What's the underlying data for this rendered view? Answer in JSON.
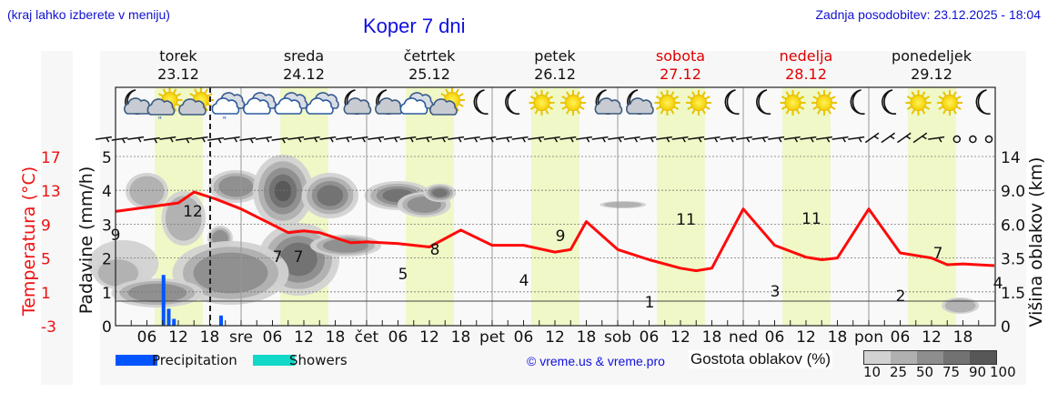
{
  "header": {
    "location_hint": "(kraj lahko izberete v meniju)",
    "title": "Koper 7 dni",
    "last_update": "Zadnja posodobitev: 23.12.2025 - 18:04"
  },
  "days": [
    {
      "name": "torek",
      "date": "23.12",
      "weekend": false
    },
    {
      "name": "sreda",
      "date": "24.12",
      "weekend": false
    },
    {
      "name": "četrtek",
      "date": "25.12",
      "weekend": false
    },
    {
      "name": "petek",
      "date": "26.12",
      "weekend": false
    },
    {
      "name": "sobota",
      "date": "27.12",
      "weekend": true
    },
    {
      "name": "nedelja",
      "date": "28.12",
      "weekend": true
    },
    {
      "name": "ponedeljek",
      "date": "29.12",
      "weekend": false
    }
  ],
  "weather_icons": [
    "moon-cloud-icon",
    "sun-cloud-rain-icon",
    "sun-cloud-icon",
    "cloud-rain-icon",
    "cloud-icon",
    "cloud-icon",
    "cloud-icon",
    "moon-cloud-icon",
    "moon-cloud-icon",
    "cloud-icon",
    "sun-cloud-icon",
    "moon-icon",
    "moon-icon",
    "sun-icon",
    "sun-icon",
    "moon-cloud-icon",
    "moon-cloud-icon",
    "sun-icon",
    "sun-icon",
    "moon-icon",
    "moon-icon",
    "sun-icon",
    "sun-icon",
    "moon-icon",
    "moon-icon",
    "sun-icon",
    "sun-icon",
    "moon-icon"
  ],
  "axes": {
    "temp_label": "Temperatura (°C)",
    "temp_ticks": [
      "17",
      "13",
      "9",
      "5",
      "1",
      "-3"
    ],
    "precip_label": "Padavine (mm/h)",
    "precip_ticks": [
      "5",
      "4",
      "3",
      "2",
      "1",
      "0"
    ],
    "cloud_label": "Višina oblakov (km)",
    "cloud_ticks": [
      "14",
      "9.0",
      "6.0",
      "3.5",
      "1.5",
      "0"
    ],
    "x_ticks": [
      "06",
      "12",
      "18",
      "sre",
      "06",
      "12",
      "18",
      "čet",
      "06",
      "12",
      "18",
      "pet",
      "06",
      "12",
      "18",
      "sob",
      "06",
      "12",
      "18",
      "ned",
      "06",
      "12",
      "18",
      "pon",
      "06",
      "12",
      "18"
    ]
  },
  "legend": {
    "precipitation": "Precipitation",
    "showers": "Showers",
    "precipitation_color": "#0055ff",
    "showers_color": "#11d8c8",
    "copyright": "© vreme.us & vreme.pro",
    "cloud_density_label": "Gostota oblakov (%)",
    "cloud_density_ticks": [
      "10",
      "25",
      "50",
      "75",
      "90",
      "100"
    ],
    "cloud_density_colors": [
      "#d2d2d2",
      "#b0b0b0",
      "#8e8e8e",
      "#727272",
      "#575757"
    ]
  },
  "chart_data": {
    "type": "line",
    "title": "Koper 7 dni",
    "xlabel": "",
    "ylabel": "Temperatura (°C)",
    "ylim": [
      -3,
      17
    ],
    "grid": true,
    "x_unit": "hours from 23.12 00:00",
    "series": [
      {
        "name": "Temperatura (°C)",
        "color": "#ff0000",
        "x": [
          0,
          12,
          15,
          19,
          24,
          33,
          36,
          39,
          45,
          48,
          54,
          60,
          66,
          72,
          78,
          84,
          87,
          90,
          96,
          102,
          108,
          111,
          114,
          120,
          126,
          132,
          135,
          138,
          144,
          150,
          156,
          159,
          162,
          168
        ],
        "values": [
          10.5,
          11.5,
          12.8,
          12,
          10.8,
          8,
          8.2,
          8,
          6.8,
          6.9,
          6.7,
          6.3,
          8.3,
          6.5,
          6.5,
          5.7,
          6,
          9.3,
          6,
          4.8,
          3.8,
          3.5,
          3.8,
          10.8,
          6.5,
          5.1,
          4.8,
          5,
          10.8,
          5.6,
          5.0,
          4.2,
          4.3,
          4.1
        ]
      },
      {
        "name": "Precipitation (mm/h)",
        "color": "#0055ff",
        "x": [
          9,
          10,
          11,
          20
        ],
        "values": [
          1.5,
          0.5,
          0.2,
          0.3
        ]
      }
    ],
    "annotations": [
      {
        "x": 0,
        "label": "9"
      },
      {
        "x": 15,
        "label": "12"
      },
      {
        "x": 33,
        "label": "7"
      },
      {
        "x": 36,
        "label": "7"
      },
      {
        "x": 54,
        "label": "5"
      },
      {
        "x": 60,
        "label": "8"
      },
      {
        "x": 84,
        "label": "4"
      },
      {
        "x": 90,
        "label": "9"
      },
      {
        "x": 110,
        "label": "1"
      },
      {
        "x": 114,
        "label": "11"
      },
      {
        "x": 134,
        "label": "3"
      },
      {
        "x": 138,
        "label": "11"
      },
      {
        "x": 156,
        "label": "2"
      },
      {
        "x": 162,
        "label": "7"
      },
      {
        "x": 168,
        "label": "4"
      }
    ],
    "now_marker": "23.12 18:04",
    "secondary_axes": {
      "precip_mm_h": [
        0,
        5
      ],
      "cloud_height_km": [
        "0",
        "1.5",
        "3.5",
        "6.0",
        "9.0",
        "14"
      ]
    }
  }
}
